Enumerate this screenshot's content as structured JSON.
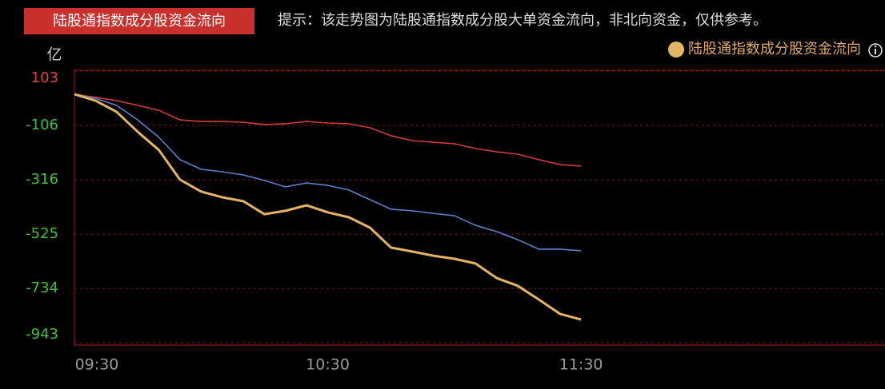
{
  "chart_data": {
    "type": "line",
    "title": "陆股通指数成分股资金流向",
    "subtitle": "提示：该走势图为陆股通指数成分股大单资金流向，非北向资金，仅供参考。",
    "y_unit": "亿",
    "x": [
      0,
      5,
      10,
      15,
      20,
      25,
      30,
      35,
      40,
      45,
      50,
      55,
      60,
      65,
      70,
      75,
      80,
      85,
      90,
      95,
      100,
      105,
      110,
      115,
      120
    ],
    "xlim": [
      0,
      192
    ],
    "xticks": [
      {
        "value": 0,
        "label": "09:30"
      },
      {
        "value": 60,
        "label": "10:30"
      },
      {
        "value": 120,
        "label": "11:30"
      }
    ],
    "ylim": [
      -943,
      103
    ],
    "yticks": [
      103,
      -106,
      -316,
      -525,
      -734,
      -943
    ],
    "grid": true,
    "legend": "top-right",
    "series": [
      {
        "color": "#d23a3a",
        "values": [
          14,
          2,
          -11,
          -29,
          -48,
          -85,
          -91,
          -91,
          -94,
          -103,
          -100,
          -91,
          -97,
          -100,
          -115,
          -146,
          -165,
          -171,
          -177,
          -195,
          -208,
          -217,
          -238,
          -257,
          -263
        ]
      },
      {
        "color": "#5b7fc9",
        "values": [
          14,
          -2,
          -29,
          -85,
          -152,
          -238,
          -275,
          -285,
          -297,
          -318,
          -343,
          -328,
          -337,
          -355,
          -392,
          -429,
          -435,
          -445,
          -454,
          -491,
          -515,
          -546,
          -583,
          -583,
          -589
        ]
      },
      {
        "name": "陆股通指数成分股资金流向",
        "color": "#e3b463",
        "values": [
          14,
          -11,
          -54,
          -131,
          -201,
          -315,
          -361,
          -383,
          -398,
          -448,
          -435,
          -414,
          -441,
          -460,
          -500,
          -577,
          -592,
          -608,
          -620,
          -638,
          -694,
          -724,
          -777,
          -832,
          -854
        ]
      }
    ]
  }
}
